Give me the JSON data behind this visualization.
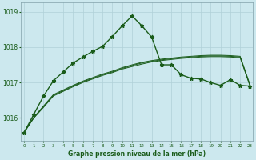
{
  "title": "Graphe pression niveau de la mer (hPa)",
  "background_color": "#cce8ee",
  "grid_color": "#b0d0d8",
  "line_color": "#1a5c1a",
  "xlim": [
    -0.3,
    23.3
  ],
  "ylim": [
    1015.35,
    1019.25
  ],
  "yticks": [
    1016,
    1017,
    1018,
    1019
  ],
  "x_labels": [
    "0",
    "1",
    "2",
    "3",
    "4",
    "5",
    "6",
    "7",
    "8",
    "9",
    "10",
    "11",
    "12",
    "13",
    "14",
    "15",
    "16",
    "17",
    "18",
    "19",
    "20",
    "21",
    "22",
    "23"
  ],
  "series_main": [
    1015.58,
    1016.0,
    1016.3,
    1016.62,
    1016.75,
    1016.88,
    1017.0,
    1017.1,
    1017.2,
    1017.28,
    1017.38,
    1017.45,
    1017.52,
    1017.58,
    1017.62,
    1017.65,
    1017.68,
    1017.7,
    1017.72,
    1017.73,
    1017.73,
    1017.72,
    1017.7,
    1016.9
  ],
  "series_avg1": [
    1015.58,
    1016.0,
    1016.32,
    1016.64,
    1016.77,
    1016.9,
    1017.02,
    1017.12,
    1017.22,
    1017.3,
    1017.4,
    1017.48,
    1017.55,
    1017.6,
    1017.64,
    1017.67,
    1017.7,
    1017.72,
    1017.74,
    1017.75,
    1017.75,
    1017.74,
    1017.72,
    1016.92
  ],
  "series_avg2": [
    1015.6,
    1016.02,
    1016.34,
    1016.66,
    1016.79,
    1016.92,
    1017.04,
    1017.14,
    1017.24,
    1017.32,
    1017.42,
    1017.5,
    1017.57,
    1017.62,
    1017.66,
    1017.69,
    1017.72,
    1017.74,
    1017.76,
    1017.77,
    1017.77,
    1017.76,
    1017.74,
    1016.94
  ],
  "series_line": [
    1015.58,
    1016.1,
    1016.62,
    1017.05,
    1017.3,
    1017.55,
    1017.72,
    1017.88,
    1018.02,
    1018.3,
    1018.6,
    1018.88,
    1018.6,
    1018.28,
    1017.5,
    1017.5,
    1017.22,
    1017.12,
    1017.1,
    1017.0,
    1016.92,
    1017.08,
    1016.92,
    1016.9
  ]
}
